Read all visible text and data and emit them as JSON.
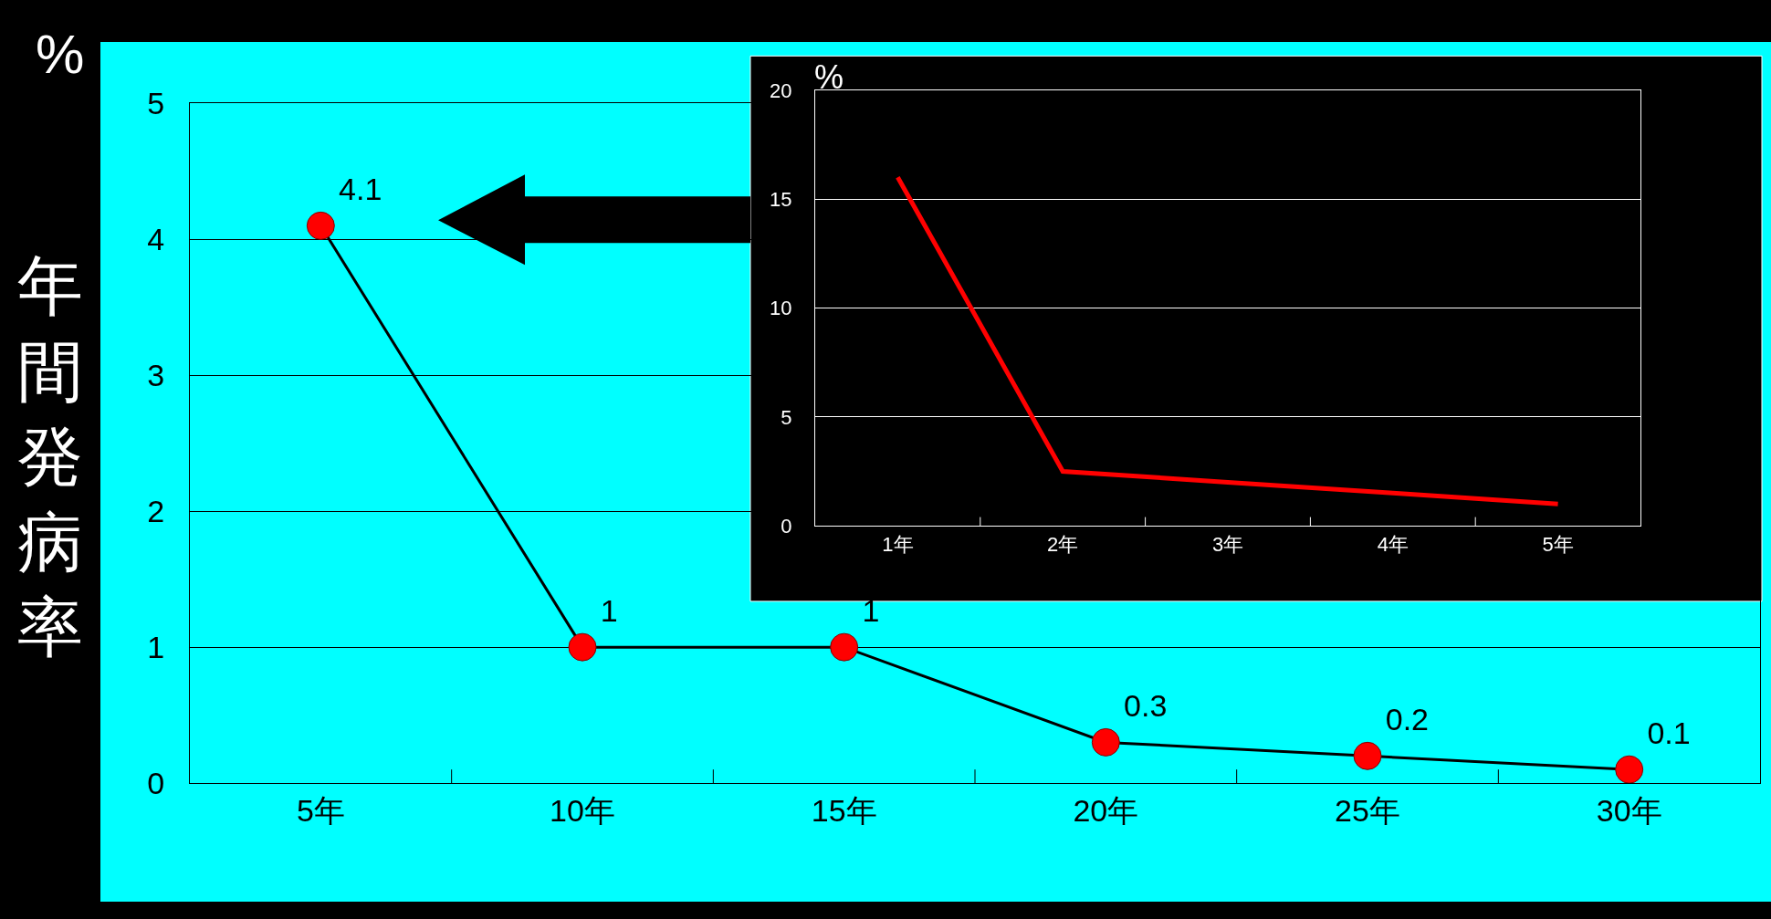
{
  "chart_data": [
    {
      "type": "line",
      "ylabel": "年間発病率",
      "annotations": [
        "%"
      ],
      "categories": [
        "5年",
        "10年",
        "15年",
        "20年",
        "25年",
        "30年"
      ],
      "series": [
        {
          "color": "#000000",
          "values": [
            4.1,
            1,
            1,
            0.3,
            0.2,
            0.1
          ]
        }
      ],
      "ylim": [
        0,
        5
      ],
      "yticks": [
        0,
        1,
        2,
        3,
        4,
        5
      ],
      "grid": "y",
      "marker": "circle",
      "line_style": "solid",
      "data_labels": true
    },
    {
      "type": "line",
      "ylabel": "%",
      "categories": [
        "1年",
        "2年",
        "3年",
        "4年",
        "5年"
      ],
      "series": [
        {
          "color": "#ff0000",
          "values": [
            16,
            2.5,
            2,
            1.5,
            1
          ]
        }
      ],
      "ylim": [
        0,
        20
      ],
      "yticks": [
        0,
        5,
        10,
        15,
        20
      ],
      "grid": "y",
      "line_style": "solid"
    }
  ]
}
